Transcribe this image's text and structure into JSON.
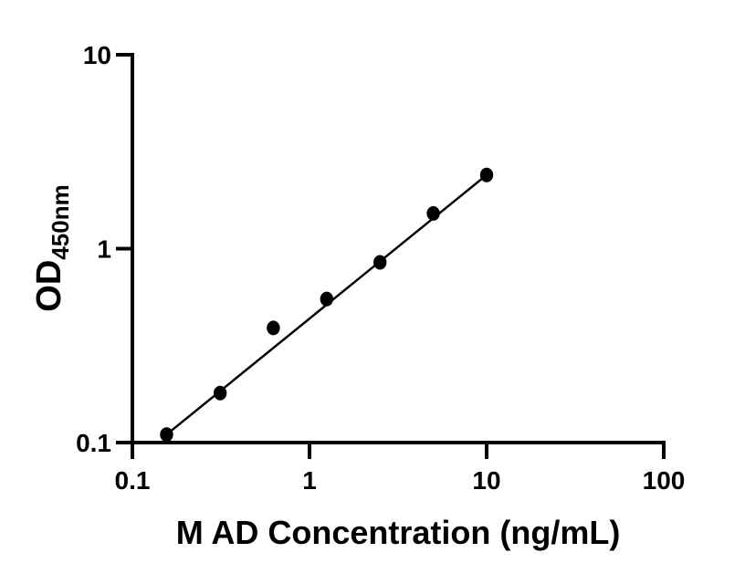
{
  "chart_data": {
    "type": "scatter",
    "title": "",
    "xlabel": "M AD Concentration (ng/mL)",
    "ylabel_main": "OD",
    "ylabel_sub": "450nm",
    "xscale": "log",
    "yscale": "log",
    "xlim": [
      0.1,
      100
    ],
    "ylim": [
      0.1,
      10
    ],
    "x_ticks": [
      0.1,
      1,
      10,
      100
    ],
    "x_tick_labels": [
      "0.1",
      "1",
      "10",
      "100"
    ],
    "y_ticks": [
      0.1,
      1,
      10
    ],
    "y_tick_labels": [
      "0.1",
      "1",
      "10"
    ],
    "x": [
      0.156,
      0.313,
      0.625,
      1.25,
      2.5,
      5,
      10
    ],
    "y": [
      0.11,
      0.18,
      0.39,
      0.55,
      0.85,
      1.52,
      2.4
    ],
    "trend_line": true,
    "grid": false,
    "legend": "none",
    "marker_color": "#000000",
    "line_color": "#000000",
    "axis_color": "#000000",
    "background": "#ffffff"
  }
}
